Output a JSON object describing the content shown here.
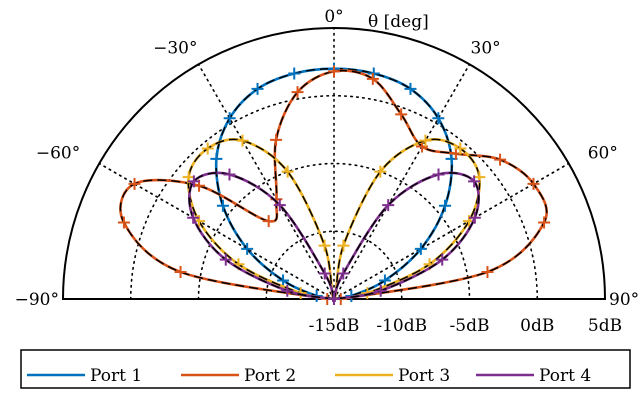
{
  "chart_data": {
    "type": "line",
    "subtype": "polar-half",
    "radial_unit": "dB",
    "radial_range": [
      -15,
      5
    ],
    "radial_ticks": [
      "-15dB",
      "-10dB",
      "-5dB",
      "0dB",
      "5dB"
    ],
    "radial_tick_values": [
      -15,
      -10,
      -5,
      0,
      5
    ],
    "theta_range": [
      -90,
      90
    ],
    "theta_ticks": [
      {
        "value": -90,
        "label": "−90°"
      },
      {
        "value": -60,
        "label": "−60°"
      },
      {
        "value": -30,
        "label": "−30°"
      },
      {
        "value": 0,
        "label": "0°"
      },
      {
        "value": 30,
        "label": "30°"
      },
      {
        "value": 60,
        "label": "60°"
      },
      {
        "value": 90,
        "label": "90°"
      }
    ],
    "theta_axis_label": "θ [deg]",
    "grid": "dotted",
    "legend_position": "bottom",
    "series": [
      {
        "name": "Port 1",
        "color": "#0072BD",
        "theta": [
          -90,
          -80,
          -70,
          -60,
          -50,
          -40,
          -30,
          -20,
          -10,
          0,
          10,
          20,
          30,
          40,
          50,
          60,
          70,
          80,
          90
        ],
        "r_db": [
          -15,
          -13.7,
          -11.0,
          -7.6,
          -4.3,
          -1.5,
          0.4,
          1.5,
          1.9,
          2.0,
          1.9,
          1.5,
          0.4,
          -1.5,
          -4.3,
          -7.6,
          -11.0,
          -13.7,
          -15
        ]
      },
      {
        "name": "Port 2",
        "color": "#D95319",
        "theta": [
          -90,
          -80,
          -70,
          -60,
          -50,
          -40,
          -30,
          -20,
          -10,
          0,
          10,
          20,
          30,
          40,
          50,
          60,
          70,
          80,
          90
        ],
        "r_db": [
          -14.5,
          -3.5,
          1.5,
          2.0,
          -2.0,
          -7.5,
          -6.5,
          -2.5,
          0.5,
          1.8,
          1.5,
          -0.5,
          -2.0,
          -1.0,
          1.0,
          2.0,
          1.5,
          -3.5,
          -14.5
        ]
      },
      {
        "name": "Port 3",
        "color": "#EDB120",
        "theta": [
          -90,
          -80,
          -70,
          -60,
          -50,
          -40,
          -30,
          -20,
          -10,
          0,
          10,
          20,
          30,
          40,
          50,
          60,
          70,
          80,
          90
        ],
        "r_db": [
          -15,
          -12.5,
          -7.5,
          -3.5,
          -1.0,
          -0.5,
          -1.5,
          -5.0,
          -11.0,
          -15,
          -11.0,
          -5.0,
          -1.5,
          -0.5,
          -1.0,
          -3.5,
          -7.5,
          -12.5,
          -15
        ]
      },
      {
        "name": "Port 4",
        "color": "#7E2F8E",
        "theta": [
          -90,
          -80,
          -70,
          -60,
          -50,
          -40,
          -30,
          -20,
          -10,
          0,
          10,
          20,
          30,
          40,
          50,
          60,
          70,
          80,
          90
        ],
        "r_db": [
          -15,
          -11.5,
          -6.5,
          -3.0,
          -1.5,
          -3.0,
          -7.0,
          -13.0,
          -15,
          -15,
          -15,
          -13.0,
          -7.0,
          -3.0,
          -1.5,
          -3.0,
          -6.5,
          -11.5,
          -15
        ]
      }
    ]
  }
}
